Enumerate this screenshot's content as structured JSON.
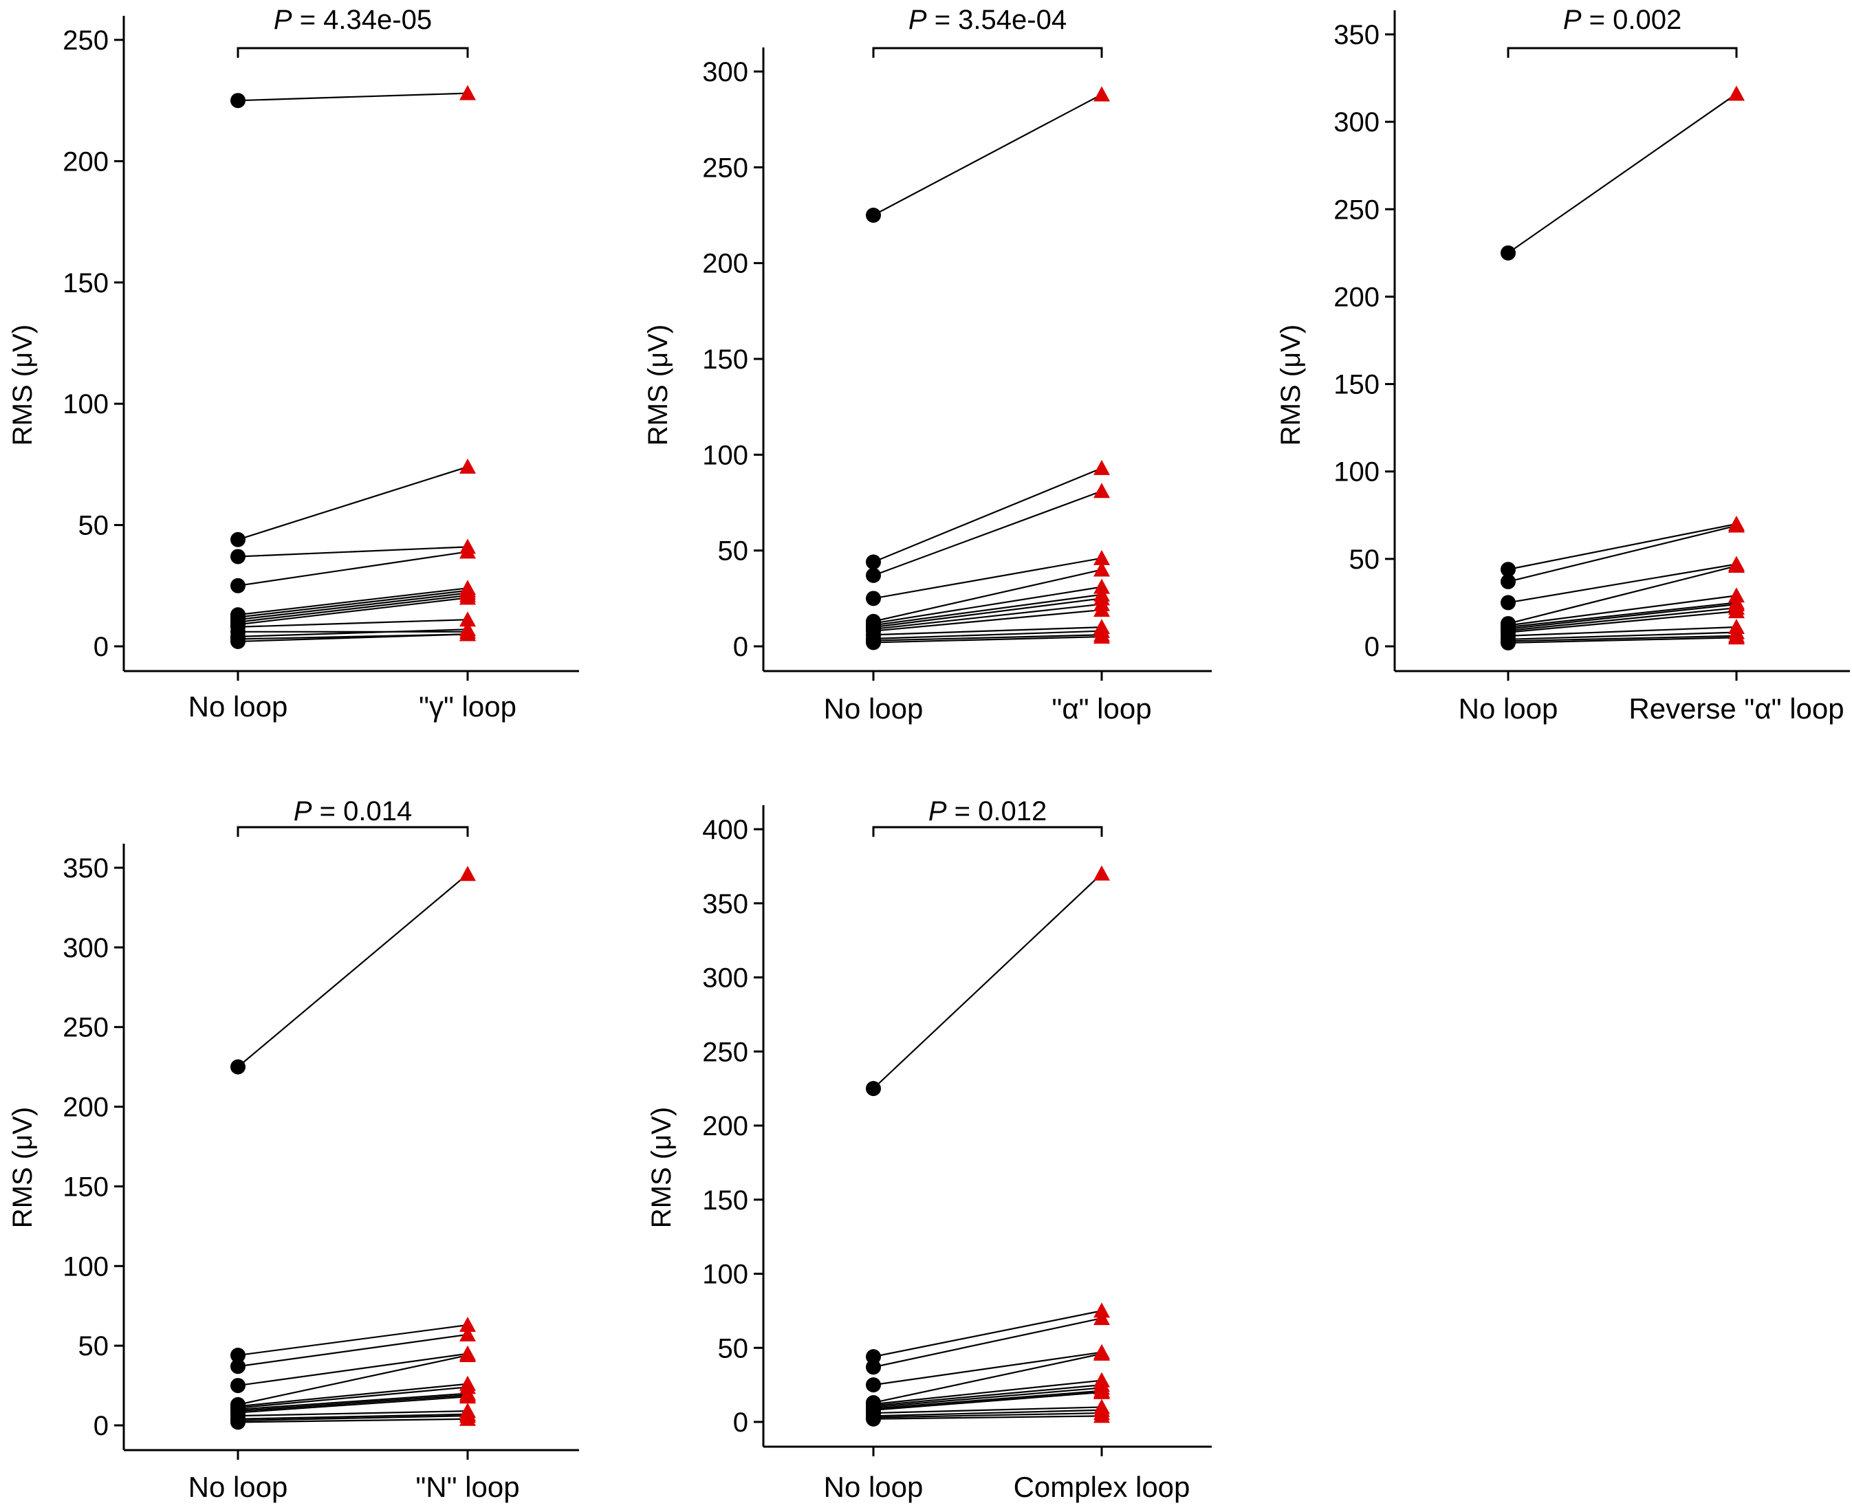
{
  "chart_data": [
    {
      "type": "line",
      "panel": "gamma",
      "ylabel": "RMS (μV)",
      "ylim": [
        0,
        250
      ],
      "yticks": [
        0,
        50,
        100,
        150,
        200,
        250
      ],
      "categories": [
        "No loop",
        "\"γ\" loop"
      ],
      "p_prefix": "P",
      "p_text": " = 4.34e-05",
      "pairs": [
        [
          225,
          228
        ],
        [
          44,
          74
        ],
        [
          37,
          41
        ],
        [
          25,
          39
        ],
        [
          13,
          24
        ],
        [
          12,
          23
        ],
        [
          11,
          22
        ],
        [
          10,
          21
        ],
        [
          9,
          20
        ],
        [
          8,
          11
        ],
        [
          6,
          6
        ],
        [
          4,
          7
        ],
        [
          3,
          5
        ],
        [
          2,
          5
        ]
      ]
    },
    {
      "type": "line",
      "panel": "alpha",
      "ylabel": "RMS (μV)",
      "ylim": [
        0,
        300
      ],
      "yticks": [
        0,
        50,
        100,
        150,
        200,
        250,
        300
      ],
      "categories": [
        "No loop",
        "\"α\" loop"
      ],
      "p_prefix": "P",
      "p_text": " = 3.54e-04",
      "pairs": [
        [
          225,
          288
        ],
        [
          44,
          93
        ],
        [
          37,
          81
        ],
        [
          25,
          46
        ],
        [
          13,
          40
        ],
        [
          12,
          31
        ],
        [
          11,
          27
        ],
        [
          10,
          25
        ],
        [
          9,
          22
        ],
        [
          8,
          19
        ],
        [
          6,
          10
        ],
        [
          4,
          8
        ],
        [
          3,
          6
        ],
        [
          2,
          5
        ]
      ]
    },
    {
      "type": "line",
      "panel": "reverse-alpha",
      "ylabel": "RMS (μV)",
      "ylim": [
        0,
        350
      ],
      "yticks": [
        0,
        50,
        100,
        150,
        200,
        250,
        300,
        350
      ],
      "categories": [
        "No loop",
        "Reverse \"α\" loop"
      ],
      "p_prefix": "P",
      "p_text": " = 0.002",
      "pairs": [
        [
          225,
          316
        ],
        [
          44,
          70
        ],
        [
          37,
          69
        ],
        [
          25,
          47
        ],
        [
          13,
          46
        ],
        [
          12,
          29
        ],
        [
          11,
          25
        ],
        [
          10,
          24
        ],
        [
          9,
          22
        ],
        [
          8,
          20
        ],
        [
          6,
          11
        ],
        [
          4,
          8
        ],
        [
          3,
          6
        ],
        [
          2,
          5
        ]
      ]
    },
    {
      "type": "line",
      "panel": "n",
      "ylabel": "RMS (μV)",
      "ylim": [
        0,
        350
      ],
      "yticks": [
        0,
        50,
        100,
        150,
        200,
        250,
        300,
        350
      ],
      "categories": [
        "No loop",
        "\"N\" loop"
      ],
      "p_prefix": "P",
      "p_text": " = 0.014",
      "pairs": [
        [
          225,
          346
        ],
        [
          44,
          63
        ],
        [
          37,
          57
        ],
        [
          25,
          45
        ],
        [
          13,
          44
        ],
        [
          12,
          26
        ],
        [
          11,
          24
        ],
        [
          10,
          20
        ],
        [
          9,
          19
        ],
        [
          8,
          18
        ],
        [
          6,
          9
        ],
        [
          4,
          7
        ],
        [
          3,
          6
        ],
        [
          2,
          4
        ]
      ]
    },
    {
      "type": "line",
      "panel": "complex",
      "ylabel": "RMS (μV)",
      "ylim": [
        0,
        400
      ],
      "yticks": [
        0,
        50,
        100,
        150,
        200,
        250,
        300,
        350,
        400
      ],
      "categories": [
        "No loop",
        "Complex loop"
      ],
      "p_prefix": "P",
      "p_text": " = 0.012",
      "pairs": [
        [
          225,
          370
        ],
        [
          44,
          75
        ],
        [
          37,
          70
        ],
        [
          25,
          47
        ],
        [
          13,
          46
        ],
        [
          12,
          28
        ],
        [
          11,
          25
        ],
        [
          10,
          23
        ],
        [
          9,
          21
        ],
        [
          8,
          20
        ],
        [
          6,
          10
        ],
        [
          4,
          8
        ],
        [
          3,
          6
        ],
        [
          2,
          4
        ]
      ]
    }
  ],
  "colors": {
    "baseline_marker": "#000000",
    "loop_marker": "#dd0000",
    "lines": "#000000"
  }
}
